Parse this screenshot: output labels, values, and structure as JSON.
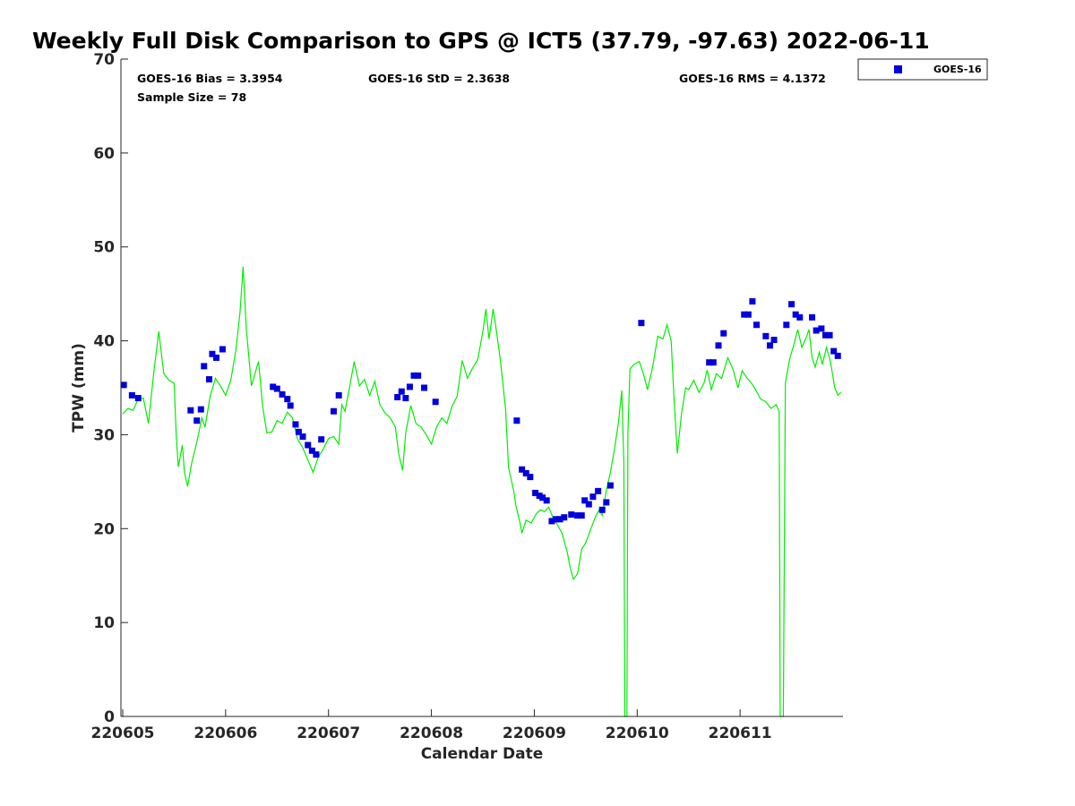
{
  "chart_data": {
    "type": "scatter",
    "title": "Weekly Full Disk Comparison to GPS @ ICT5 (37.79, -97.63) 2022-06-11",
    "xlabel": "Calendar Date",
    "ylabel": "TPW (mm)",
    "xlim": [
      0,
      7
    ],
    "ylim": [
      0,
      70
    ],
    "x_ticks": [
      0,
      1,
      2,
      3,
      4,
      5,
      6
    ],
    "x_tick_labels": [
      "220605",
      "220606",
      "220607",
      "220608",
      "220609",
      "220610",
      "220611"
    ],
    "y_ticks": [
      0,
      10,
      20,
      30,
      40,
      50,
      60,
      70
    ],
    "y_tick_labels": [
      "0",
      "10",
      "20",
      "30",
      "40",
      "50",
      "60",
      "70"
    ],
    "stats": {
      "bias": "GOES-16 Bias = 3.3954",
      "std": "GOES-16 StD = 2.3638",
      "rms": "GOES-16 RMS = 4.1372",
      "sample": "Sample Size = 78"
    },
    "legend": {
      "label": "GOES-16",
      "position": "top-right outside"
    },
    "colors": {
      "goes": "#0000dd",
      "gps": "#00ee00"
    },
    "series": [
      {
        "name": "GOES-16",
        "marker": "square",
        "color": "#0000dd",
        "points": [
          [
            0.01,
            35.3
          ],
          [
            0.09,
            34.2
          ],
          [
            0.15,
            33.9
          ],
          [
            0.66,
            32.6
          ],
          [
            0.72,
            31.5
          ],
          [
            0.76,
            32.7
          ],
          [
            0.79,
            37.3
          ],
          [
            0.84,
            35.9
          ],
          [
            0.87,
            38.6
          ],
          [
            0.91,
            38.2
          ],
          [
            0.97,
            39.1
          ],
          [
            1.46,
            35.1
          ],
          [
            1.5,
            34.9
          ],
          [
            1.55,
            34.3
          ],
          [
            1.6,
            33.8
          ],
          [
            1.63,
            33.1
          ],
          [
            1.68,
            31.1
          ],
          [
            1.71,
            30.3
          ],
          [
            1.75,
            29.8
          ],
          [
            1.8,
            28.9
          ],
          [
            1.84,
            28.3
          ],
          [
            1.88,
            27.9
          ],
          [
            1.93,
            29.5
          ],
          [
            2.05,
            32.5
          ],
          [
            2.1,
            34.2
          ],
          [
            2.67,
            34.0
          ],
          [
            2.71,
            34.6
          ],
          [
            2.75,
            33.9
          ],
          [
            2.79,
            35.1
          ],
          [
            2.83,
            36.3
          ],
          [
            2.87,
            36.3
          ],
          [
            2.93,
            35.0
          ],
          [
            3.04,
            33.5
          ],
          [
            3.83,
            31.5
          ],
          [
            3.88,
            26.3
          ],
          [
            3.92,
            25.9
          ],
          [
            3.96,
            25.5
          ],
          [
            4.01,
            23.8
          ],
          [
            4.05,
            23.5
          ],
          [
            4.08,
            23.3
          ],
          [
            4.12,
            23.0
          ],
          [
            4.17,
            20.8
          ],
          [
            4.21,
            21.0
          ],
          [
            4.25,
            21.0
          ],
          [
            4.29,
            21.2
          ],
          [
            4.36,
            21.5
          ],
          [
            4.42,
            21.4
          ],
          [
            4.46,
            21.4
          ],
          [
            4.49,
            23.0
          ],
          [
            4.53,
            22.6
          ],
          [
            4.57,
            23.4
          ],
          [
            4.62,
            24.0
          ],
          [
            4.66,
            22.0
          ],
          [
            4.7,
            22.8
          ],
          [
            4.74,
            24.6
          ],
          [
            5.04,
            41.9
          ],
          [
            5.7,
            37.7
          ],
          [
            5.74,
            37.7
          ],
          [
            5.79,
            39.5
          ],
          [
            5.84,
            40.8
          ],
          [
            6.04,
            42.8
          ],
          [
            6.08,
            42.8
          ],
          [
            6.12,
            44.2
          ],
          [
            6.16,
            41.7
          ],
          [
            6.25,
            40.5
          ],
          [
            6.29,
            39.5
          ],
          [
            6.33,
            40.1
          ],
          [
            6.45,
            41.7
          ],
          [
            6.5,
            43.9
          ],
          [
            6.54,
            42.8
          ],
          [
            6.58,
            42.5
          ],
          [
            6.7,
            42.5
          ],
          [
            6.74,
            41.1
          ],
          [
            6.79,
            41.3
          ],
          [
            6.83,
            40.6
          ],
          [
            6.87,
            40.6
          ],
          [
            6.91,
            38.9
          ],
          [
            6.95,
            38.4
          ]
        ]
      },
      {
        "name": "GPS",
        "marker": "line",
        "color": "#00ee00",
        "points": [
          [
            0,
            32.2
          ],
          [
            0.05,
            32.8
          ],
          [
            0.1,
            32.6
          ],
          [
            0.15,
            33.8
          ],
          [
            0.2,
            33.9
          ],
          [
            0.25,
            31.2
          ],
          [
            0.3,
            36.5
          ],
          [
            0.35,
            41.0
          ],
          [
            0.4,
            36.5
          ],
          [
            0.45,
            35.8
          ],
          [
            0.5,
            35.5
          ],
          [
            0.52,
            30.0
          ],
          [
            0.54,
            26.6
          ],
          [
            0.58,
            28.9
          ],
          [
            0.6,
            26.0
          ],
          [
            0.63,
            24.5
          ],
          [
            0.67,
            27.0
          ],
          [
            0.72,
            29.2
          ],
          [
            0.77,
            31.8
          ],
          [
            0.8,
            30.8
          ],
          [
            0.85,
            34.1
          ],
          [
            0.9,
            36.0
          ],
          [
            0.95,
            35.2
          ],
          [
            1.0,
            34.2
          ],
          [
            1.05,
            35.8
          ],
          [
            1.1,
            39.0
          ],
          [
            1.14,
            43.0
          ],
          [
            1.17,
            47.9
          ],
          [
            1.2,
            41.5
          ],
          [
            1.25,
            35.2
          ],
          [
            1.32,
            37.8
          ],
          [
            1.36,
            33.0
          ],
          [
            1.4,
            30.2
          ],
          [
            1.45,
            30.3
          ],
          [
            1.5,
            31.5
          ],
          [
            1.55,
            31.2
          ],
          [
            1.6,
            32.4
          ],
          [
            1.65,
            31.8
          ],
          [
            1.7,
            29.5
          ],
          [
            1.75,
            28.6
          ],
          [
            1.8,
            27.3
          ],
          [
            1.85,
            26.0
          ],
          [
            1.9,
            27.6
          ],
          [
            1.95,
            28.5
          ],
          [
            2.0,
            29.6
          ],
          [
            2.05,
            29.8
          ],
          [
            2.1,
            29.0
          ],
          [
            2.13,
            33.2
          ],
          [
            2.16,
            32.5
          ],
          [
            2.2,
            34.8
          ],
          [
            2.25,
            37.8
          ],
          [
            2.3,
            35.2
          ],
          [
            2.35,
            35.9
          ],
          [
            2.4,
            34.2
          ],
          [
            2.45,
            35.7
          ],
          [
            2.5,
            33.2
          ],
          [
            2.55,
            32.3
          ],
          [
            2.6,
            31.8
          ],
          [
            2.65,
            30.8
          ],
          [
            2.68,
            28.1
          ],
          [
            2.72,
            26.2
          ],
          [
            2.75,
            30.2
          ],
          [
            2.8,
            33.1
          ],
          [
            2.85,
            31.2
          ],
          [
            2.9,
            30.8
          ],
          [
            2.95,
            30.0
          ],
          [
            3.0,
            29.0
          ],
          [
            3.05,
            30.8
          ],
          [
            3.1,
            31.8
          ],
          [
            3.15,
            31.2
          ],
          [
            3.2,
            33.0
          ],
          [
            3.25,
            34.1
          ],
          [
            3.3,
            37.9
          ],
          [
            3.35,
            36.0
          ],
          [
            3.4,
            37.1
          ],
          [
            3.45,
            38.0
          ],
          [
            3.5,
            41.0
          ],
          [
            3.53,
            43.4
          ],
          [
            3.56,
            40.2
          ],
          [
            3.6,
            43.4
          ],
          [
            3.63,
            41.2
          ],
          [
            3.67,
            38.0
          ],
          [
            3.72,
            32.8
          ],
          [
            3.75,
            26.5
          ],
          [
            3.8,
            24.0
          ],
          [
            3.82,
            22.5
          ],
          [
            3.86,
            20.7
          ],
          [
            3.88,
            19.5
          ],
          [
            3.92,
            20.9
          ],
          [
            3.97,
            20.6
          ],
          [
            4.02,
            21.6
          ],
          [
            4.06,
            22.0
          ],
          [
            4.1,
            21.8
          ],
          [
            4.14,
            22.3
          ],
          [
            4.18,
            21.2
          ],
          [
            4.22,
            20.5
          ],
          [
            4.27,
            19.5
          ],
          [
            4.32,
            17.5
          ],
          [
            4.35,
            15.8
          ],
          [
            4.38,
            14.6
          ],
          [
            4.42,
            15.2
          ],
          [
            4.46,
            17.8
          ],
          [
            4.5,
            18.5
          ],
          [
            4.55,
            20.0
          ],
          [
            4.6,
            21.4
          ],
          [
            4.63,
            22.0
          ],
          [
            4.66,
            21.4
          ],
          [
            4.7,
            24.0
          ],
          [
            4.74,
            26.0
          ],
          [
            4.78,
            28.5
          ],
          [
            4.82,
            31.5
          ],
          [
            4.85,
            34.7
          ],
          [
            4.87,
            27.0
          ],
          [
            4.88,
            0
          ],
          [
            4.9,
            0
          ],
          [
            4.91,
            30.0
          ],
          [
            4.93,
            37.0
          ],
          [
            4.97,
            37.5
          ],
          [
            5.02,
            37.8
          ],
          [
            5.06,
            36.5
          ],
          [
            5.1,
            34.8
          ],
          [
            5.15,
            37.2
          ],
          [
            5.2,
            40.5
          ],
          [
            5.25,
            40.2
          ],
          [
            5.29,
            41.7
          ],
          [
            5.33,
            40.0
          ],
          [
            5.36,
            33.5
          ],
          [
            5.39,
            28.0
          ],
          [
            5.43,
            32.2
          ],
          [
            5.47,
            35.0
          ],
          [
            5.5,
            34.8
          ],
          [
            5.55,
            35.8
          ],
          [
            5.6,
            34.5
          ],
          [
            5.65,
            35.5
          ],
          [
            5.68,
            36.9
          ],
          [
            5.72,
            34.8
          ],
          [
            5.77,
            36.5
          ],
          [
            5.82,
            36.0
          ],
          [
            5.88,
            38.2
          ],
          [
            5.93,
            37.0
          ],
          [
            5.98,
            35.0
          ],
          [
            6.02,
            36.8
          ],
          [
            6.07,
            36.0
          ],
          [
            6.11,
            35.5
          ],
          [
            6.15,
            34.8
          ],
          [
            6.2,
            33.8
          ],
          [
            6.25,
            33.5
          ],
          [
            6.3,
            32.8
          ],
          [
            6.35,
            33.2
          ],
          [
            6.38,
            32.5
          ],
          [
            6.39,
            0
          ],
          [
            6.42,
            0
          ],
          [
            6.44,
            35.5
          ],
          [
            6.48,
            38.0
          ],
          [
            6.52,
            39.5
          ],
          [
            6.56,
            41.2
          ],
          [
            6.6,
            39.3
          ],
          [
            6.64,
            40.3
          ],
          [
            6.67,
            41.2
          ],
          [
            6.7,
            38.2
          ],
          [
            6.73,
            37.2
          ],
          [
            6.77,
            38.8
          ],
          [
            6.8,
            37.5
          ],
          [
            6.84,
            39.3
          ],
          [
            6.88,
            37.7
          ],
          [
            6.92,
            35.0
          ],
          [
            6.95,
            34.2
          ],
          [
            6.98,
            34.5
          ]
        ]
      }
    ]
  }
}
